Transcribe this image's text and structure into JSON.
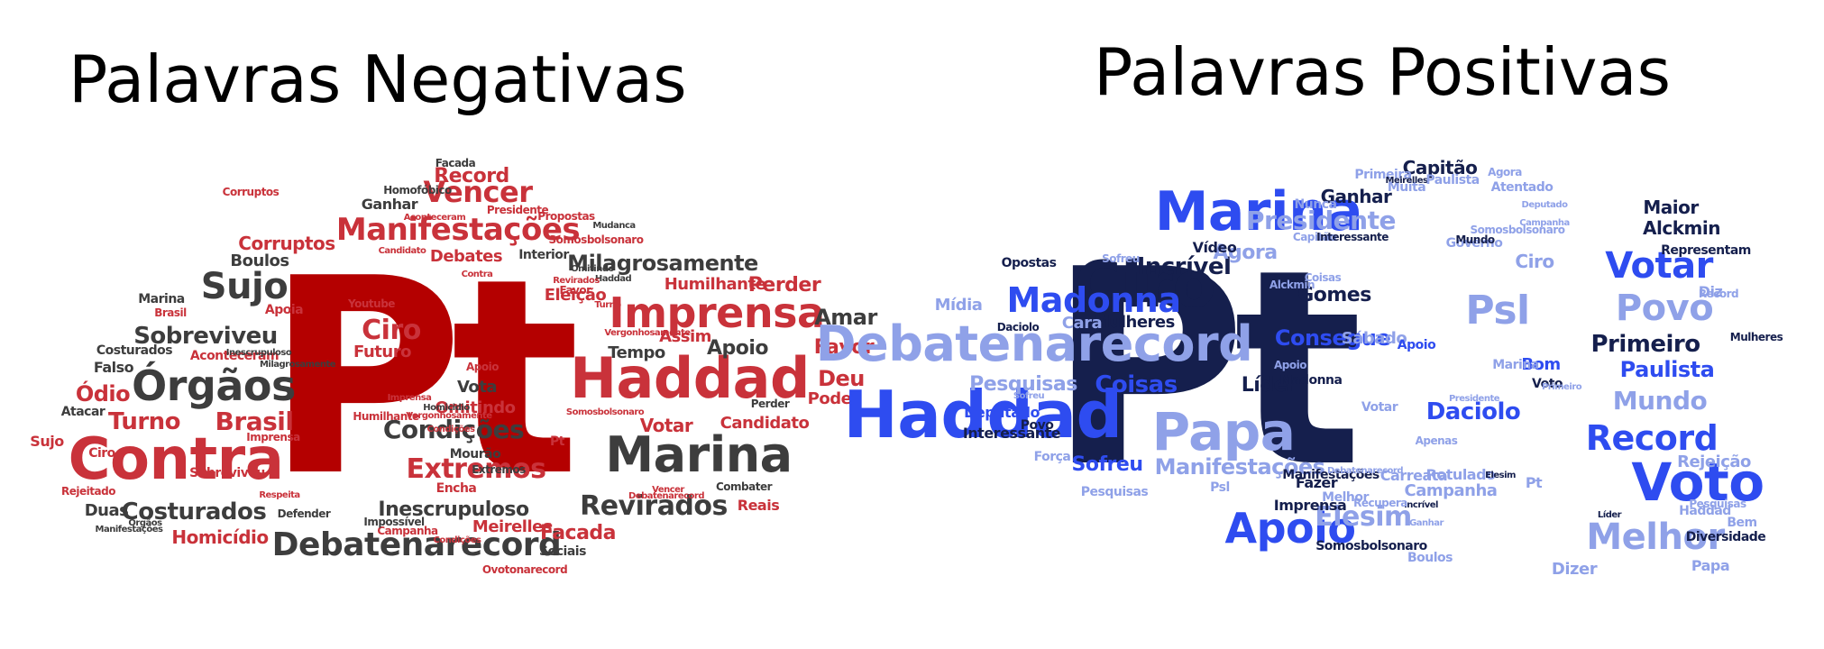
{
  "titles": {
    "negative": "Palavras Negativas",
    "positive": "Palavras Positivas"
  },
  "colors": {
    "neg_dark": "#3d3d3d",
    "neg_red": "#b40000",
    "neg_red2": "#c9323a",
    "neg_light": "#cf5a5f",
    "pos_navy": "#151f4d",
    "pos_blue": "#2e4cf0",
    "pos_mid": "#4c6ae8",
    "pos_light": "#8fa1e8"
  },
  "negative_words": [
    {
      "text": "Pt",
      "color": "neg_red"
    },
    {
      "text": "Contra",
      "color": "neg_red2"
    },
    {
      "text": "Haddad",
      "color": "neg_red2"
    },
    {
      "text": "Marina",
      "color": "neg_dark"
    },
    {
      "text": "Imprensa",
      "color": "neg_red2"
    },
    {
      "text": "Manifestações",
      "color": "neg_red2"
    },
    {
      "text": "Debatenarecord",
      "color": "neg_dark"
    },
    {
      "text": "Órgãos",
      "color": "neg_dark"
    },
    {
      "text": "Sujo",
      "color": "neg_dark"
    },
    {
      "text": "Revirados",
      "color": "neg_dark"
    },
    {
      "text": "Costurados",
      "color": "neg_dark"
    },
    {
      "text": "Extremos",
      "color": "neg_red2"
    },
    {
      "text": "Condições",
      "color": "neg_dark"
    },
    {
      "text": "Vencer",
      "color": "neg_red2"
    },
    {
      "text": "Ciro",
      "color": "neg_red2"
    },
    {
      "text": "Sobreviveu",
      "color": "neg_dark"
    },
    {
      "text": "Turno",
      "color": "neg_red2"
    },
    {
      "text": "Brasil",
      "color": "neg_red2"
    },
    {
      "text": "Milagrosamente",
      "color": "neg_dark"
    },
    {
      "text": "Inescrupuloso",
      "color": "neg_dark"
    },
    {
      "text": "Corruptos",
      "color": "neg_red2"
    },
    {
      "text": "Perder",
      "color": "neg_red2"
    },
    {
      "text": "Amar",
      "color": "neg_dark"
    },
    {
      "text": "Favor",
      "color": "neg_red2"
    },
    {
      "text": "Deu",
      "color": "neg_red2"
    },
    {
      "text": "Apoio",
      "color": "neg_dark"
    },
    {
      "text": "Pode",
      "color": "neg_red2"
    },
    {
      "text": "Candidato",
      "color": "neg_red2"
    },
    {
      "text": "Votar",
      "color": "neg_red2"
    },
    {
      "text": "Record",
      "color": "neg_red2"
    },
    {
      "text": "Boulos",
      "color": "neg_dark"
    },
    {
      "text": "Ódio",
      "color": "neg_red2"
    },
    {
      "text": "Homicídio",
      "color": "neg_red2"
    },
    {
      "text": "Facada",
      "color": "neg_red2"
    },
    {
      "text": "Reais",
      "color": "neg_red2"
    },
    {
      "text": "Futuro",
      "color": "neg_red2"
    },
    {
      "text": "Omitindo",
      "color": "neg_red2"
    },
    {
      "text": "Vota",
      "color": "neg_dark"
    },
    {
      "text": "Assim",
      "color": "neg_red2"
    },
    {
      "text": "Tempo",
      "color": "neg_dark"
    },
    {
      "text": "Eleição",
      "color": "neg_red2"
    },
    {
      "text": "Humilhante",
      "color": "neg_red2"
    },
    {
      "text": "Meirelles",
      "color": "neg_red2"
    },
    {
      "text": "Encha",
      "color": "neg_red2"
    },
    {
      "text": "Mourão",
      "color": "neg_dark"
    },
    {
      "text": "Atacar",
      "color": "neg_dark"
    },
    {
      "text": "Duas",
      "color": "neg_dark"
    },
    {
      "text": "Falso",
      "color": "neg_dark"
    },
    {
      "text": "Sujo",
      "color": "neg_red2"
    },
    {
      "text": "Ciro",
      "color": "neg_red2"
    },
    {
      "text": "Debates",
      "color": "neg_red2"
    },
    {
      "text": "Ganhar",
      "color": "neg_dark"
    },
    {
      "text": "Aconteceram",
      "color": "neg_red2"
    },
    {
      "text": "Apoia",
      "color": "neg_red2"
    },
    {
      "text": "Sociais",
      "color": "neg_dark"
    },
    {
      "text": "Vergonhosamente",
      "color": "neg_red2"
    },
    {
      "text": "Combater",
      "color": "neg_dark"
    },
    {
      "text": "Rejeitado",
      "color": "neg_red2"
    },
    {
      "text": "Ovotonarecord",
      "color": "neg_red2"
    },
    {
      "text": "Campanha",
      "color": "neg_red2"
    },
    {
      "text": "Impossível",
      "color": "neg_dark"
    },
    {
      "text": "Marina",
      "color": "neg_dark"
    },
    {
      "text": "Homofóbico",
      "color": "neg_dark"
    },
    {
      "text": "Brasil",
      "color": "neg_red2"
    },
    {
      "text": "Facada",
      "color": "neg_dark"
    },
    {
      "text": "Propostas",
      "color": "neg_red2"
    },
    {
      "text": "Somosbolsonaro",
      "color": "neg_red2"
    },
    {
      "text": "Interior",
      "color": "neg_dark"
    },
    {
      "text": "Contra",
      "color": "neg_red2"
    },
    {
      "text": "Haddad",
      "color": "neg_dark"
    },
    {
      "text": "Extremos",
      "color": "neg_dark"
    },
    {
      "text": "Perder",
      "color": "neg_dark"
    },
    {
      "text": "Condições",
      "color": "neg_red2"
    },
    {
      "text": "Pt",
      "color": "neg_red2"
    },
    {
      "text": "Defender",
      "color": "neg_dark"
    },
    {
      "text": "Respeita",
      "color": "neg_red2"
    },
    {
      "text": "Youtube",
      "color": "neg_red2"
    },
    {
      "text": "Apoio",
      "color": "neg_red2"
    },
    {
      "text": "Favor",
      "color": "neg_red2"
    },
    {
      "text": "Presidente",
      "color": "neg_red2"
    },
    {
      "text": "Mudanca",
      "color": "neg_dark"
    },
    {
      "text": "Revirados",
      "color": "neg_red2"
    },
    {
      "text": "Vencer",
      "color": "neg_red2"
    },
    {
      "text": "Costurados",
      "color": "neg_dark"
    },
    {
      "text": "Órgãos",
      "color": "neg_dark"
    },
    {
      "text": "Manifestações",
      "color": "neg_dark"
    },
    {
      "text": "Corruptos",
      "color": "neg_red2"
    },
    {
      "text": "Milagrosamente",
      "color": "neg_dark"
    },
    {
      "text": "Sobreviveu",
      "color": "neg_red2"
    },
    {
      "text": "Imprensa",
      "color": "neg_red2"
    },
    {
      "text": "Homicidio",
      "color": "neg_dark"
    },
    {
      "text": "Omitindo",
      "color": "neg_dark"
    },
    {
      "text": "Turno",
      "color": "neg_red2"
    },
    {
      "text": "Inescrupuloso",
      "color": "neg_dark"
    },
    {
      "text": "Debatenarecord",
      "color": "neg_red2"
    },
    {
      "text": "Somosbolsonaro",
      "color": "neg_red2"
    },
    {
      "text": "Humilhante",
      "color": "neg_red2"
    },
    {
      "text": "Vergonhosamente",
      "color": "neg_red2"
    },
    {
      "text": "Aconteceram",
      "color": "neg_red2"
    },
    {
      "text": "Candidato",
      "color": "neg_red2"
    },
    {
      "text": "Imprensa",
      "color": "neg_red2"
    },
    {
      "text": "Condições",
      "color": "neg_red2"
    },
    {
      "text": "Manifestações",
      "color": "neg_dark"
    },
    {
      "text": "Extremos",
      "color": "neg_dark"
    }
  ],
  "positive_words": [
    {
      "text": "Pt",
      "color": "pos_navy"
    },
    {
      "text": "Haddad",
      "color": "pos_blue"
    },
    {
      "text": "Debatenarecord",
      "color": "pos_light"
    },
    {
      "text": "Marina",
      "color": "pos_blue"
    },
    {
      "text": "Ciro",
      "color": "pos_navy"
    },
    {
      "text": "Papa",
      "color": "pos_light"
    },
    {
      "text": "Voto",
      "color": "pos_blue"
    },
    {
      "text": "Apoio",
      "color": "pos_blue"
    },
    {
      "text": "Madonna",
      "color": "pos_blue"
    },
    {
      "text": "Melhor",
      "color": "pos_light"
    },
    {
      "text": "Psl",
      "color": "pos_light"
    },
    {
      "text": "Record",
      "color": "pos_blue"
    },
    {
      "text": "Votar",
      "color": "pos_blue"
    },
    {
      "text": "Povo",
      "color": "pos_light"
    },
    {
      "text": "Presidente",
      "color": "pos_light"
    },
    {
      "text": "Elesim",
      "color": "pos_light"
    },
    {
      "text": "Manifestações",
      "color": "pos_light"
    },
    {
      "text": "Primeiro",
      "color": "pos_navy"
    },
    {
      "text": "Paulista",
      "color": "pos_blue"
    },
    {
      "text": "Mundo",
      "color": "pos_light"
    },
    {
      "text": "Daciolo",
      "color": "pos_blue"
    },
    {
      "text": "Incrível",
      "color": "pos_navy"
    },
    {
      "text": "Agora",
      "color": "pos_light"
    },
    {
      "text": "Pesquisas",
      "color": "pos_light"
    },
    {
      "text": "Sofreu",
      "color": "pos_blue"
    },
    {
      "text": "Coisas",
      "color": "pos_blue"
    },
    {
      "text": "Líder",
      "color": "pos_navy"
    },
    {
      "text": "Deputado",
      "color": "pos_blue"
    },
    {
      "text": "Campanha",
      "color": "pos_light"
    },
    {
      "text": "Rotulado",
      "color": "pos_light"
    },
    {
      "text": "Carreata",
      "color": "pos_light"
    },
    {
      "text": "Mulheres",
      "color": "pos_navy"
    },
    {
      "text": "Cara",
      "color": "pos_light"
    },
    {
      "text": "Mídia",
      "color": "pos_light"
    },
    {
      "text": "Alckmin",
      "color": "pos_navy"
    },
    {
      "text": "Maior",
      "color": "pos_navy"
    },
    {
      "text": "Ganhar",
      "color": "pos_navy"
    },
    {
      "text": "Capitão",
      "color": "pos_navy"
    },
    {
      "text": "Atentado",
      "color": "pos_light"
    },
    {
      "text": "Muita",
      "color": "pos_light"
    },
    {
      "text": "Nunca",
      "color": "pos_light"
    },
    {
      "text": "Vídeo",
      "color": "pos_navy"
    },
    {
      "text": "Opostas",
      "color": "pos_navy"
    },
    {
      "text": "Ciro",
      "color": "pos_light"
    },
    {
      "text": "Bom",
      "color": "pos_blue"
    },
    {
      "text": "Voto",
      "color": "pos_navy"
    },
    {
      "text": "Rejeição",
      "color": "pos_light"
    },
    {
      "text": "Diz",
      "color": "pos_light"
    },
    {
      "text": "Bem",
      "color": "pos_light"
    },
    {
      "text": "Diversidade",
      "color": "pos_navy"
    },
    {
      "text": "Papa",
      "color": "pos_light"
    },
    {
      "text": "Dizer",
      "color": "pos_light"
    },
    {
      "text": "Somosbolsonaro",
      "color": "pos_navy"
    },
    {
      "text": "Boulos",
      "color": "pos_light"
    },
    {
      "text": "Imprensa",
      "color": "pos_navy"
    },
    {
      "text": "Melhor",
      "color": "pos_light"
    },
    {
      "text": "Força",
      "color": "pos_light"
    },
    {
      "text": "Interessante",
      "color": "pos_navy"
    },
    {
      "text": "Fazer",
      "color": "pos_navy"
    },
    {
      "text": "Consegue",
      "color": "pos_blue"
    },
    {
      "text": "Gomes",
      "color": "pos_navy"
    },
    {
      "text": "Psl",
      "color": "pos_light"
    },
    {
      "text": "Pt",
      "color": "pos_light"
    },
    {
      "text": "Sábado",
      "color": "pos_light"
    },
    {
      "text": "Apoio",
      "color": "pos_blue"
    },
    {
      "text": "Governo",
      "color": "pos_light"
    },
    {
      "text": "Primeira",
      "color": "pos_light"
    },
    {
      "text": "Meirelles",
      "color": "pos_navy"
    },
    {
      "text": "Paulista",
      "color": "pos_light"
    },
    {
      "text": "Incrível",
      "color": "pos_navy"
    },
    {
      "text": "Votar",
      "color": "pos_light"
    },
    {
      "text": "Apenas",
      "color": "pos_light"
    },
    {
      "text": "Recupera",
      "color": "pos_light"
    },
    {
      "text": "Haddad",
      "color": "pos_light"
    },
    {
      "text": "Pesquisas",
      "color": "pos_light"
    },
    {
      "text": "Mulheres",
      "color": "pos_navy"
    },
    {
      "text": "Representam",
      "color": "pos_navy"
    },
    {
      "text": "Record",
      "color": "pos_light"
    },
    {
      "text": "Marina",
      "color": "pos_light"
    },
    {
      "text": "Povo",
      "color": "pos_navy"
    },
    {
      "text": "Daciolo",
      "color": "pos_navy"
    },
    {
      "text": "Sofreu",
      "color": "pos_light"
    },
    {
      "text": "Agora",
      "color": "pos_light"
    },
    {
      "text": "Coisas",
      "color": "pos_light"
    },
    {
      "text": "Capitão",
      "color": "pos_light"
    },
    {
      "text": "Madonna",
      "color": "pos_navy"
    },
    {
      "text": "Alckmin",
      "color": "pos_light"
    },
    {
      "text": "Apoio",
      "color": "pos_light"
    },
    {
      "text": "Interessante",
      "color": "pos_navy"
    },
    {
      "text": "Somosbolsonaro",
      "color": "pos_light"
    },
    {
      "text": "Mundo",
      "color": "pos_navy"
    },
    {
      "text": "Manifestações",
      "color": "pos_navy"
    },
    {
      "text": "Debatenarecord",
      "color": "pos_light"
    },
    {
      "text": "Ganhar",
      "color": "pos_light"
    },
    {
      "text": "Campanha",
      "color": "pos_light"
    },
    {
      "text": "Presidente",
      "color": "pos_light"
    },
    {
      "text": "Elesim",
      "color": "pos_navy"
    },
    {
      "text": "Deputado",
      "color": "pos_light"
    },
    {
      "text": "Primeiro",
      "color": "pos_light"
    },
    {
      "text": "Líder",
      "color": "pos_navy"
    },
    {
      "text": "Pesquisas",
      "color": "pos_light"
    },
    {
      "text": "Sofreu",
      "color": "pos_light"
    }
  ]
}
